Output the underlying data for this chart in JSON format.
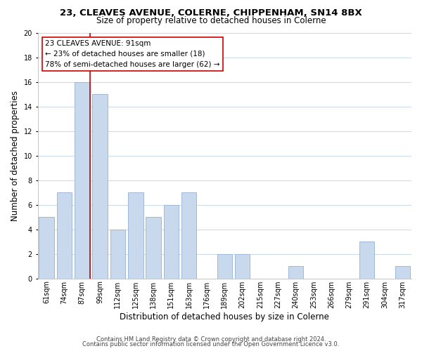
{
  "title1": "23, CLEAVES AVENUE, COLERNE, CHIPPENHAM, SN14 8BX",
  "title2": "Size of property relative to detached houses in Colerne",
  "xlabel": "Distribution of detached houses by size in Colerne",
  "ylabel": "Number of detached properties",
  "bar_labels": [
    "61sqm",
    "74sqm",
    "87sqm",
    "99sqm",
    "112sqm",
    "125sqm",
    "138sqm",
    "151sqm",
    "163sqm",
    "176sqm",
    "189sqm",
    "202sqm",
    "215sqm",
    "227sqm",
    "240sqm",
    "253sqm",
    "266sqm",
    "279sqm",
    "291sqm",
    "304sqm",
    "317sqm"
  ],
  "bar_values": [
    5,
    7,
    16,
    15,
    4,
    7,
    5,
    6,
    7,
    0,
    2,
    2,
    0,
    0,
    1,
    0,
    0,
    0,
    3,
    0,
    1
  ],
  "bar_color": "#c9d9ed",
  "bar_edge_color": "#a0b8d8",
  "vline_color": "#cc0000",
  "vline_x_index": 2,
  "annotation_title": "23 CLEAVES AVENUE: 91sqm",
  "annotation_line1": "← 23% of detached houses are smaller (18)",
  "annotation_line2": "78% of semi-detached houses are larger (62) →",
  "annotation_box_color": "#ffffff",
  "annotation_box_edge": "#cc0000",
  "ylim": [
    0,
    20
  ],
  "yticks": [
    0,
    2,
    4,
    6,
    8,
    10,
    12,
    14,
    16,
    18,
    20
  ],
  "footer1": "Contains HM Land Registry data © Crown copyright and database right 2024.",
  "footer2": "Contains public sector information licensed under the Open Government Licence v3.0.",
  "bg_color": "#ffffff",
  "grid_color": "#c8d8e8",
  "title_fontsize": 9.5,
  "subtitle_fontsize": 8.5,
  "xlabel_fontsize": 8.5,
  "ylabel_fontsize": 8.5,
  "tick_fontsize": 7,
  "annotation_fontsize": 7.5,
  "footer_fontsize": 6
}
